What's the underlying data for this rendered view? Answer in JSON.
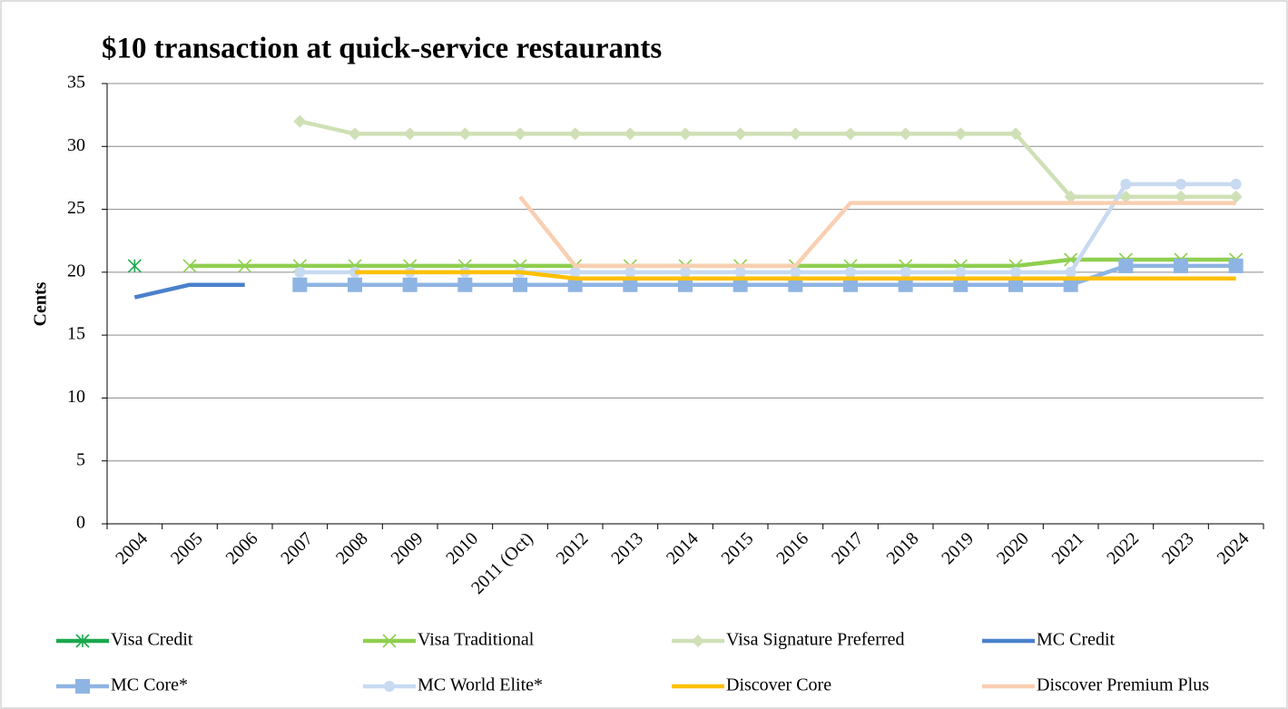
{
  "chart_data": {
    "type": "line",
    "title": "$10 transaction at quick-service restaurants",
    "y_label": "Cents",
    "categories": [
      "2004",
      "2005",
      "2006",
      "2007",
      "2008",
      "2009",
      "2010",
      "2011 (Oct)",
      "2012",
      "2013",
      "2014",
      "2015",
      "2016",
      "2017",
      "2018",
      "2019",
      "2020",
      "2021",
      "2022",
      "2023",
      "2024"
    ],
    "series": [
      {
        "name": "Visa Credit",
        "color": "#1aa84c",
        "marker": "asterisk",
        "values": [
          20.5,
          null,
          null,
          null,
          null,
          null,
          null,
          null,
          null,
          null,
          null,
          null,
          null,
          null,
          null,
          null,
          null,
          null,
          null,
          null,
          null
        ]
      },
      {
        "name": "Visa Traditional",
        "color": "#8fcf4f",
        "marker": "x",
        "values": [
          null,
          20.5,
          20.5,
          20.5,
          20.5,
          20.5,
          20.5,
          20.5,
          20.5,
          20.5,
          20.5,
          20.5,
          20.5,
          20.5,
          20.5,
          20.5,
          20.5,
          21,
          21,
          21,
          21
        ]
      },
      {
        "name": "Visa Signature Preferred",
        "color": "#cfe0b6",
        "marker": "diamond",
        "values": [
          null,
          null,
          null,
          32,
          31,
          31,
          31,
          31,
          31,
          31,
          31,
          31,
          31,
          31,
          31,
          31,
          31,
          26,
          26,
          26,
          26
        ]
      },
      {
        "name": "MC Credit",
        "color": "#4a80cc",
        "marker": "none",
        "values": [
          18,
          19,
          19,
          null,
          null,
          null,
          null,
          null,
          null,
          null,
          null,
          null,
          null,
          null,
          null,
          null,
          null,
          null,
          null,
          null,
          null
        ]
      },
      {
        "name": "MC Core*",
        "color": "#8eb4e3",
        "marker": "square",
        "values": [
          null,
          null,
          null,
          19,
          19,
          19,
          19,
          19,
          19,
          19,
          19,
          19,
          19,
          19,
          19,
          19,
          19,
          19,
          20.5,
          20.5,
          20.5
        ]
      },
      {
        "name": "MC World Elite*",
        "color": "#c8daf1",
        "marker": "circle",
        "values": [
          null,
          null,
          null,
          20,
          20,
          20,
          20,
          20,
          20,
          20,
          20,
          20,
          20,
          20,
          20,
          20,
          20,
          20,
          27,
          27,
          27
        ]
      },
      {
        "name": "Discover Core",
        "color": "#ffc000",
        "marker": "none",
        "values": [
          null,
          null,
          null,
          null,
          20,
          20,
          20,
          20,
          19.5,
          19.5,
          19.5,
          19.5,
          19.5,
          19.5,
          19.5,
          19.5,
          19.5,
          19.5,
          19.5,
          19.5,
          19.5
        ]
      },
      {
        "name": "Discover Premium Plus",
        "color": "#f9cfb1",
        "marker": "none",
        "values": [
          null,
          null,
          null,
          null,
          null,
          null,
          null,
          26,
          20.5,
          20.5,
          20.5,
          20.5,
          20.5,
          25.5,
          25.5,
          25.5,
          25.5,
          25.5,
          25.5,
          25.5,
          25.5
        ]
      }
    ],
    "ylim": [
      0,
      35
    ],
    "yticks": [
      0,
      5,
      10,
      15,
      20,
      25,
      30,
      35
    ],
    "grid": true,
    "legend": "bottom"
  }
}
